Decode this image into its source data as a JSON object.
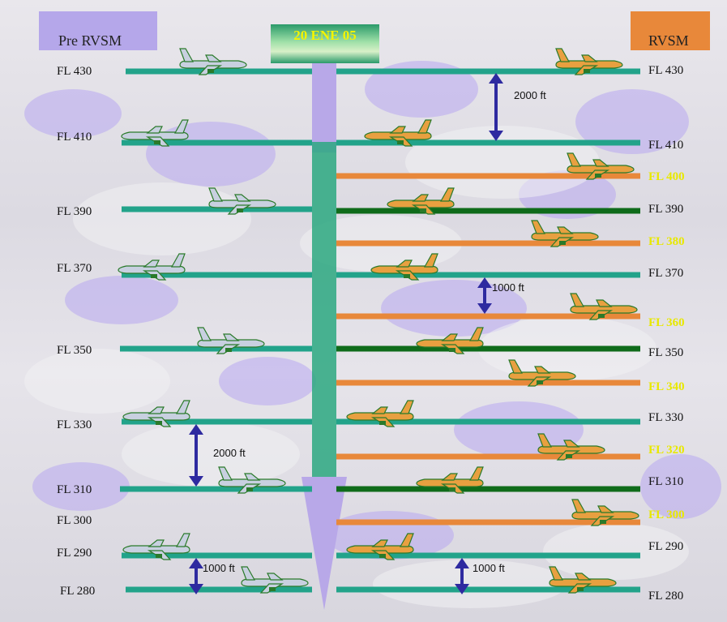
{
  "headers": {
    "pre_rvsm": "Pre RVSM",
    "rvsm": "RVSM",
    "date": "20 ENE 05"
  },
  "left_levels": [
    "FL 430",
    "FL 410",
    "FL 390",
    "FL 370",
    "FL 350",
    "FL 330",
    "FL 310",
    "FL 300",
    "FL 290",
    "FL 280"
  ],
  "right_levels": [
    "FL 430",
    "FL 410",
    "FL 400",
    "FL 390",
    "FL 380",
    "FL 370",
    "FL 360",
    "FL 350",
    "FL 340",
    "FL 330",
    "FL 320",
    "FL 310",
    "FL 300",
    "FL 290",
    "FL 280"
  ],
  "separations": {
    "top_right": "2000 ft",
    "mid_right": "1000 ft",
    "left_2000": "2000 ft",
    "left_1000": "1000 ft",
    "bottom_right": "1000 ft"
  },
  "colors": {
    "teal": "#22a38a",
    "dark_green": "#0f6b1a",
    "orange": "#e8883a",
    "purple_arrow": "#2e2aa0",
    "yellow": "#e8e800"
  }
}
